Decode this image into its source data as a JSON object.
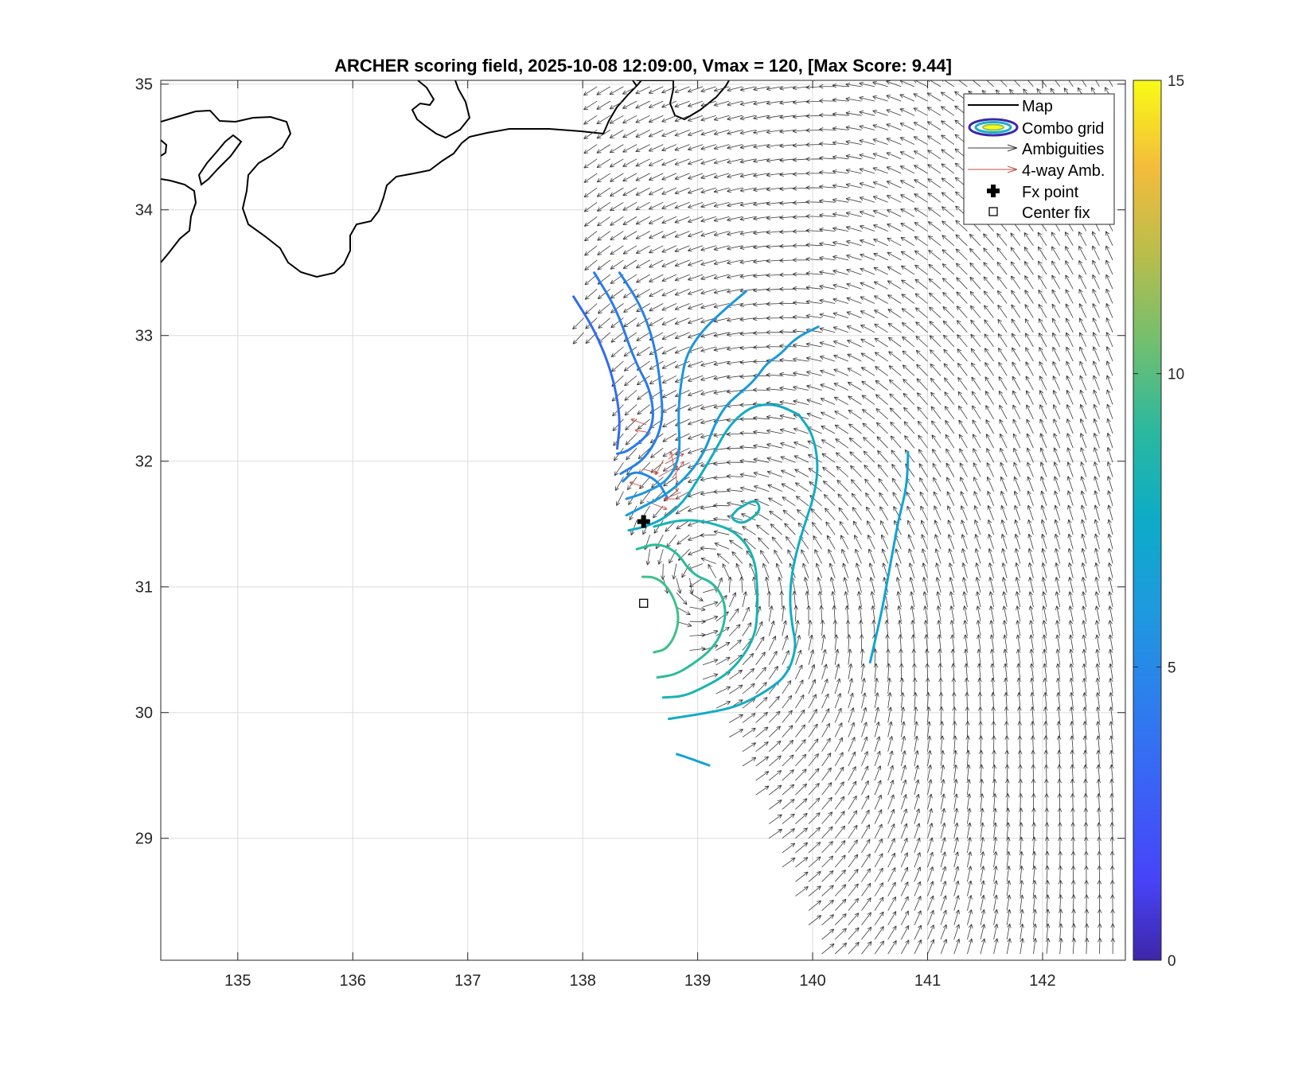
{
  "chart_data": {
    "type": "contour+quiver map",
    "title": "ARCHER scoring field, 2025-10-08 12:09:00, Vmax = 120, [Max Score: 9.44]",
    "xlabel": "",
    "ylabel": "",
    "xlim": [
      134.33,
      142.72
    ],
    "ylim": [
      28.03,
      35.03
    ],
    "x_ticks": [
      135,
      136,
      137,
      138,
      139,
      140,
      141,
      142
    ],
    "y_ticks": [
      29,
      30,
      31,
      32,
      33,
      34,
      35
    ],
    "grid": true,
    "colorbar": {
      "min": 0,
      "max": 15,
      "ticks": [
        0,
        5,
        10,
        15
      ]
    },
    "legend": {
      "position": "top-right",
      "entries": [
        "Map",
        "Combo grid",
        "Ambiguities",
        "4-way Amb.",
        "Fx point",
        "Center fix"
      ]
    },
    "fx_point": {
      "lon": 138.53,
      "lat": 31.52
    },
    "center_fix": {
      "lon": 138.53,
      "lat": 30.87
    },
    "max_score": 9.44,
    "contours": [
      {
        "level": 2.5,
        "points": [
          [
            137.92,
            33.31
          ],
          [
            138.1,
            33.05
          ],
          [
            138.25,
            32.72
          ],
          [
            138.33,
            32.35
          ],
          [
            138.3,
            32.1
          ]
        ]
      },
      {
        "level": 3.0,
        "points": [
          [
            138.1,
            33.5
          ],
          [
            138.3,
            33.2
          ],
          [
            138.45,
            32.8
          ],
          [
            138.6,
            32.55
          ],
          [
            138.62,
            32.25
          ],
          [
            138.4,
            32.08
          ],
          [
            138.3,
            32.06
          ]
        ]
      },
      {
        "level": 3.3,
        "points": [
          [
            138.32,
            33.5
          ],
          [
            138.5,
            33.25
          ],
          [
            138.62,
            32.95
          ],
          [
            138.68,
            32.6
          ],
          [
            138.7,
            32.28
          ],
          [
            138.55,
            32.02
          ],
          [
            138.33,
            31.9
          ]
        ]
      },
      {
        "level": 3.6,
        "points": [
          [
            138.73,
            31.72
          ],
          [
            138.65,
            31.85
          ],
          [
            138.45,
            31.93
          ],
          [
            138.35,
            31.84
          ]
        ]
      },
      {
        "level": 4.2,
        "points": [
          [
            139.42,
            33.35
          ],
          [
            139.25,
            33.22
          ],
          [
            139.05,
            33.05
          ],
          [
            138.9,
            32.85
          ],
          [
            138.85,
            32.6
          ],
          [
            138.83,
            32.35
          ],
          [
            138.85,
            32.05
          ],
          [
            138.75,
            31.85
          ],
          [
            138.55,
            31.75
          ],
          [
            138.38,
            31.7
          ]
        ]
      },
      {
        "level": 4.6,
        "points": [
          [
            140.05,
            33.07
          ],
          [
            139.85,
            32.98
          ],
          [
            139.72,
            32.85
          ],
          [
            139.6,
            32.78
          ],
          [
            139.5,
            32.65
          ],
          [
            139.38,
            32.55
          ],
          [
            139.25,
            32.45
          ],
          [
            139.15,
            32.3
          ],
          [
            139.05,
            32.05
          ],
          [
            138.88,
            31.85
          ],
          [
            138.7,
            31.72
          ],
          [
            138.55,
            31.65
          ],
          [
            138.38,
            31.57
          ]
        ]
      },
      {
        "level": 5.1,
        "points": [
          [
            140.83,
            32.07
          ],
          [
            140.82,
            31.8
          ],
          [
            140.75,
            31.55
          ],
          [
            140.7,
            31.3
          ],
          [
            140.65,
            31.05
          ],
          [
            140.6,
            30.8
          ],
          [
            140.55,
            30.6
          ],
          [
            140.5,
            30.4
          ]
        ]
      },
      {
        "level": 5.8,
        "points": [
          [
            139.88,
            32.37
          ],
          [
            139.7,
            32.45
          ],
          [
            139.52,
            32.45
          ],
          [
            139.38,
            32.38
          ],
          [
            139.25,
            32.25
          ],
          [
            139.15,
            32.08
          ],
          [
            139.02,
            31.88
          ],
          [
            138.88,
            31.68
          ],
          [
            138.72,
            31.55
          ],
          [
            138.55,
            31.48
          ],
          [
            138.4,
            31.45
          ]
        ]
      },
      {
        "level": 5.8,
        "points": [
          [
            139.88,
            32.37
          ],
          [
            140.0,
            32.22
          ],
          [
            140.05,
            31.98
          ],
          [
            140.02,
            31.75
          ],
          [
            139.95,
            31.55
          ],
          [
            139.88,
            31.35
          ],
          [
            139.82,
            31.12
          ],
          [
            139.8,
            30.9
          ],
          [
            139.82,
            30.7
          ],
          [
            139.86,
            30.52
          ],
          [
            139.78,
            30.3
          ],
          [
            139.6,
            30.17
          ],
          [
            139.35,
            30.05
          ],
          [
            139.1,
            30.0
          ],
          [
            138.75,
            29.95
          ]
        ]
      },
      {
        "level": 5.2,
        "points": [
          [
            138.82,
            29.67
          ],
          [
            138.95,
            29.63
          ],
          [
            139.1,
            29.58
          ]
        ]
      },
      {
        "level": 6.2,
        "points": [
          [
            139.35,
            31.62
          ],
          [
            139.5,
            31.7
          ],
          [
            139.55,
            31.62
          ],
          [
            139.48,
            31.55
          ],
          [
            139.38,
            31.5
          ],
          [
            139.28,
            31.55
          ],
          [
            139.35,
            31.62
          ]
        ]
      },
      {
        "level": 6.5,
        "points": [
          [
            138.62,
            31.48
          ],
          [
            138.82,
            31.53
          ],
          [
            139.0,
            31.53
          ],
          [
            139.15,
            31.5
          ],
          [
            139.3,
            31.45
          ],
          [
            139.42,
            31.35
          ],
          [
            139.5,
            31.2
          ],
          [
            139.52,
            31.0
          ],
          [
            139.52,
            30.8
          ],
          [
            139.5,
            30.62
          ],
          [
            139.4,
            30.45
          ],
          [
            139.25,
            30.3
          ],
          [
            139.05,
            30.2
          ],
          [
            138.88,
            30.13
          ],
          [
            138.7,
            30.12
          ]
        ]
      },
      {
        "level": 7.3,
        "points": [
          [
            138.47,
            31.3
          ],
          [
            138.65,
            31.35
          ],
          [
            138.82,
            31.28
          ],
          [
            138.95,
            31.1
          ],
          [
            139.15,
            31.03
          ],
          [
            139.25,
            30.85
          ],
          [
            139.22,
            30.65
          ],
          [
            139.12,
            30.5
          ],
          [
            138.95,
            30.38
          ],
          [
            138.8,
            30.3
          ],
          [
            138.65,
            30.28
          ]
        ]
      },
      {
        "level": 8.0,
        "points": [
          [
            138.52,
            31.08
          ],
          [
            138.62,
            31.08
          ],
          [
            138.72,
            31.02
          ],
          [
            138.8,
            30.9
          ],
          [
            138.84,
            30.75
          ],
          [
            138.8,
            30.6
          ],
          [
            138.72,
            30.5
          ],
          [
            138.62,
            30.48
          ]
        ]
      }
    ],
    "four_way_ambiguity_lon_range": [
      138.45,
      139.05
    ],
    "four_way_ambiguity_lat_range": [
      31.65,
      32.3
    ]
  },
  "legend_labels": {
    "map": "Map",
    "combo": "Combo grid",
    "amb": "Ambiguities",
    "fourway": "4-way Amb.",
    "fx": "Fx point",
    "center": "Center fix"
  },
  "colors": {
    "coast": "#000000",
    "arrow": "#3a3a3a",
    "fourway": "#c0504d",
    "grid": "#dcdcdc",
    "parula": [
      "#3e26a8",
      "#4743f8",
      "#2c73f0",
      "#1e94e0",
      "#0ca8ce",
      "#1bb8a8",
      "#45c186",
      "#8fc35e",
      "#cbba46",
      "#f4b840",
      "#f9d92d",
      "#f9fb15"
    ]
  }
}
